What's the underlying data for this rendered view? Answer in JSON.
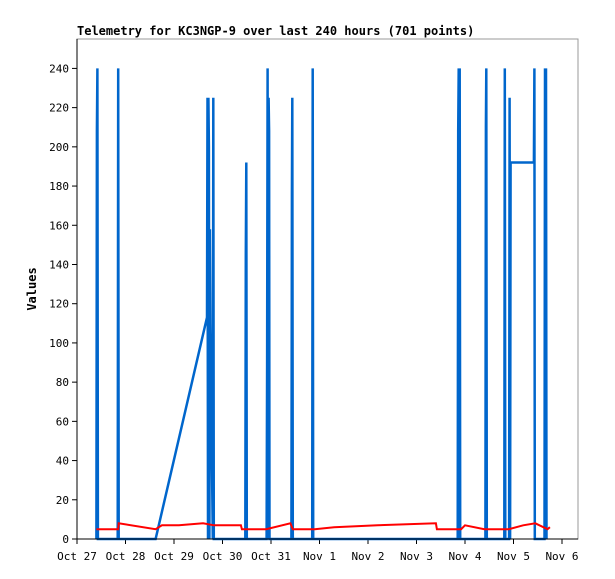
{
  "chart_data": {
    "type": "line",
    "title": "Telemetry for KC3NGP-9 over last 240 hours (701 points)",
    "xlabel": "",
    "ylabel": "Values",
    "ylim": [
      0,
      255
    ],
    "xlim": [
      0,
      10
    ],
    "yticks": [
      0,
      20,
      40,
      60,
      80,
      100,
      120,
      140,
      160,
      180,
      200,
      220,
      240
    ],
    "xticks": [
      {
        "x": 0,
        "label": "Oct 27"
      },
      {
        "x": 1,
        "label": "Oct 28"
      },
      {
        "x": 2,
        "label": "Oct 29"
      },
      {
        "x": 3,
        "label": "Oct 30"
      },
      {
        "x": 4,
        "label": "Oct 31"
      },
      {
        "x": 5,
        "label": "Nov 1"
      },
      {
        "x": 6,
        "label": "Nov 2"
      },
      {
        "x": 7,
        "label": "Nov 3"
      },
      {
        "x": 8,
        "label": "Nov 4"
      },
      {
        "x": 9,
        "label": "Nov 5"
      },
      {
        "x": 10,
        "label": "Nov 6"
      }
    ],
    "grid": false,
    "series": [
      {
        "color": "#0066cc",
        "points": [
          [
            0.4,
            0
          ],
          [
            0.41,
            208
          ],
          [
            0.42,
            240
          ],
          [
            0.43,
            0
          ],
          [
            0.84,
            0
          ],
          [
            0.85,
            240
          ],
          [
            0.86,
            0
          ],
          [
            1.62,
            0
          ],
          [
            2.68,
            113
          ],
          [
            2.69,
            225
          ],
          [
            2.7,
            0
          ],
          [
            2.71,
            225
          ],
          [
            2.72,
            200
          ],
          [
            2.73,
            0
          ],
          [
            2.74,
            158
          ],
          [
            2.75,
            110
          ],
          [
            2.8,
            0
          ],
          [
            2.81,
            225
          ],
          [
            2.82,
            0
          ],
          [
            3.47,
            0
          ],
          [
            3.48,
            145
          ],
          [
            3.49,
            192
          ],
          [
            3.5,
            0
          ],
          [
            3.91,
            0
          ],
          [
            3.92,
            88
          ],
          [
            3.93,
            240
          ],
          [
            3.94,
            0
          ],
          [
            3.95,
            225
          ],
          [
            3.96,
            208
          ],
          [
            3.97,
            0
          ],
          [
            4.42,
            0
          ],
          [
            4.43,
            176
          ],
          [
            4.44,
            225
          ],
          [
            4.45,
            0
          ],
          [
            4.85,
            0
          ],
          [
            4.86,
            240
          ],
          [
            4.87,
            0
          ],
          [
            7.85,
            0
          ],
          [
            7.86,
            208
          ],
          [
            7.87,
            240
          ],
          [
            7.88,
            0
          ],
          [
            7.89,
            240
          ],
          [
            7.9,
            0
          ],
          [
            8.42,
            0
          ],
          [
            8.43,
            210
          ],
          [
            8.44,
            240
          ],
          [
            8.45,
            0
          ],
          [
            8.81,
            0
          ],
          [
            8.82,
            240
          ],
          [
            8.83,
            0
          ],
          [
            8.91,
            0
          ],
          [
            8.92,
            225
          ],
          [
            8.93,
            0
          ],
          [
            8.94,
            192
          ],
          [
            9.42,
            192
          ],
          [
            9.43,
            240
          ],
          [
            9.44,
            0
          ],
          [
            9.64,
            0
          ],
          [
            9.65,
            240
          ],
          [
            9.66,
            0
          ],
          [
            9.67,
            240
          ],
          [
            9.68,
            0
          ]
        ]
      },
      {
        "color": "#ff0000",
        "points": [
          [
            0.4,
            5
          ],
          [
            0.85,
            5
          ],
          [
            0.86,
            8
          ],
          [
            1.62,
            5
          ],
          [
            1.75,
            7
          ],
          [
            2.1,
            7
          ],
          [
            2.6,
            8
          ],
          [
            2.82,
            7
          ],
          [
            3.38,
            7
          ],
          [
            3.4,
            5
          ],
          [
            3.9,
            5
          ],
          [
            4.4,
            8
          ],
          [
            4.45,
            5
          ],
          [
            4.9,
            5
          ],
          [
            5.3,
            6
          ],
          [
            6.2,
            7
          ],
          [
            7.4,
            8
          ],
          [
            7.42,
            5
          ],
          [
            7.92,
            5
          ],
          [
            8.0,
            7
          ],
          [
            8.4,
            5
          ],
          [
            8.9,
            5
          ],
          [
            9.2,
            7
          ],
          [
            9.45,
            8
          ],
          [
            9.7,
            5
          ],
          [
            9.75,
            6
          ]
        ]
      }
    ]
  }
}
